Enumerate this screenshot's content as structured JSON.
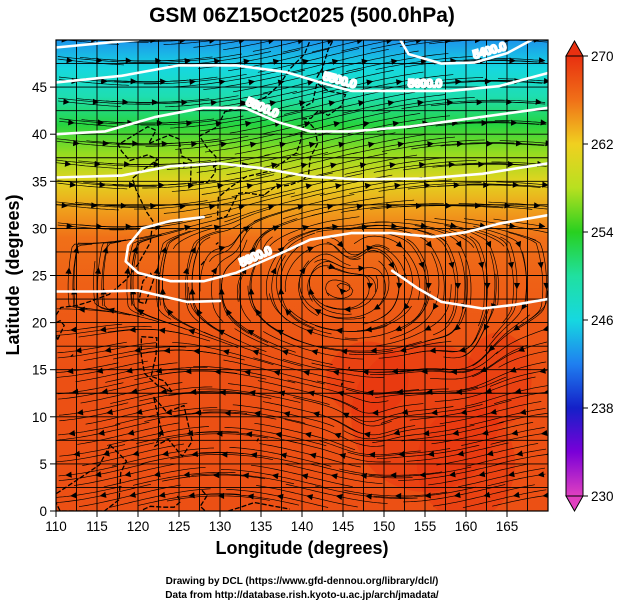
{
  "chart_data": {
    "type": "heatmap",
    "title": "GSM 06Z15Oct2025 (500.0hPa)",
    "xlabel": "Longitude (degrees)",
    "ylabel": "Latitude  (degrees)",
    "xlim": [
      110,
      170
    ],
    "ylim": [
      0,
      50
    ],
    "x_ticks": [
      110,
      115,
      120,
      125,
      130,
      135,
      140,
      145,
      150,
      155,
      160,
      165
    ],
    "y_ticks": [
      0,
      5,
      10,
      15,
      20,
      25,
      30,
      35,
      40,
      45
    ],
    "grid": true,
    "colorbar": {
      "min": 230,
      "max": 270,
      "ticks": [
        230,
        238,
        246,
        254,
        262,
        270
      ],
      "stops": [
        {
          "value": 230,
          "color": "#e040c0"
        },
        {
          "value": 234,
          "color": "#7a00d8"
        },
        {
          "value": 238,
          "color": "#1420c8"
        },
        {
          "value": 242,
          "color": "#1f7ff0"
        },
        {
          "value": 246,
          "color": "#16d8e0"
        },
        {
          "value": 250,
          "color": "#20e0a0"
        },
        {
          "value": 254,
          "color": "#28d020"
        },
        {
          "value": 258,
          "color": "#b8e020"
        },
        {
          "value": 262,
          "color": "#f0d020"
        },
        {
          "value": 266,
          "color": "#f07018"
        },
        {
          "value": 270,
          "color": "#e83010"
        }
      ]
    },
    "temperature_bands": [
      {
        "lat": 50,
        "value": 243
      },
      {
        "lat": 47,
        "value": 246
      },
      {
        "lat": 44,
        "value": 249
      },
      {
        "lat": 41,
        "value": 253
      },
      {
        "lat": 38,
        "value": 257
      },
      {
        "lat": 35,
        "value": 261
      },
      {
        "lat": 32,
        "value": 264
      },
      {
        "lat": 29,
        "value": 266
      },
      {
        "lat": 24,
        "value": 267
      },
      {
        "lat": 15,
        "value": 268
      },
      {
        "lat": 0,
        "value": 268
      }
    ],
    "contours": [
      {
        "label": "5400.0",
        "points": [
          [
            110,
            49.2
          ],
          [
            116,
            49.7
          ],
          [
            120,
            50
          ]
        ]
      },
      {
        "label": "5400.0",
        "points": [
          [
            152,
            50
          ],
          [
            153,
            48.5
          ],
          [
            157,
            47.5
          ],
          [
            161,
            47.6
          ],
          [
            165,
            48.6
          ],
          [
            168,
            50
          ]
        ]
      },
      {
        "label": "5500.0",
        "points": [
          [
            110,
            45.5
          ],
          [
            118,
            46.2
          ],
          [
            125,
            47.3
          ],
          [
            132,
            47.3
          ],
          [
            138,
            46.6
          ],
          [
            143,
            45.3
          ],
          [
            146,
            44.6
          ],
          [
            152,
            44.6
          ],
          [
            158,
            44.6
          ],
          [
            164,
            45.1
          ],
          [
            170,
            46.5
          ]
        ]
      },
      {
        "label": "5600.0",
        "points": [
          [
            110,
            40
          ],
          [
            116,
            40.3
          ],
          [
            122,
            41.8
          ],
          [
            128,
            42.8
          ],
          [
            133,
            42.8
          ],
          [
            137,
            41.3
          ],
          [
            141,
            40.3
          ],
          [
            146,
            40.3
          ],
          [
            153,
            40.8
          ],
          [
            160,
            41.6
          ],
          [
            170,
            42.8
          ]
        ]
      },
      {
        "label": "",
        "points": [
          [
            110,
            35.4
          ],
          [
            118,
            35.6
          ],
          [
            124,
            36.6
          ],
          [
            130,
            36.9
          ],
          [
            135,
            36.4
          ],
          [
            141,
            35.5
          ],
          [
            147,
            35.2
          ],
          [
            155,
            35.3
          ],
          [
            162,
            35.8
          ],
          [
            170,
            36.9
          ]
        ]
      },
      {
        "label": "5800.0",
        "points": [
          [
            128,
            31.2
          ],
          [
            124,
            30.8
          ],
          [
            120.5,
            30
          ],
          [
            118.8,
            28.2
          ],
          [
            118.5,
            26.5
          ],
          [
            120,
            25.3
          ],
          [
            124,
            24.4
          ],
          [
            128,
            24.4
          ],
          [
            132,
            25.3
          ],
          [
            137,
            27.2
          ],
          [
            141,
            28.8
          ],
          [
            146,
            29.5
          ],
          [
            151,
            29.5
          ],
          [
            156,
            29.1
          ],
          [
            160,
            29.6
          ],
          [
            164,
            30.5
          ],
          [
            170,
            31.4
          ]
        ]
      },
      {
        "label": "5800.0",
        "points": [
          [
            110,
            23.3
          ],
          [
            115,
            23.3
          ],
          [
            120,
            23.4
          ],
          [
            126,
            22.2
          ],
          [
            130,
            22.3
          ]
        ]
      },
      {
        "label": "",
        "points": [
          [
            151,
            25.5
          ],
          [
            154,
            23.7
          ],
          [
            157,
            22.2
          ],
          [
            162,
            21.5
          ],
          [
            166,
            21.9
          ],
          [
            170,
            22.5
          ]
        ]
      }
    ],
    "contour_labels": [
      "5400.0",
      "5500.0",
      "5600.0",
      "5800.0",
      "5800.0"
    ],
    "streamline_field": "500hPa wind vectors (westerly jet north of 30N, anticyclone near 25N 145E, easterlies in tropics)"
  },
  "credits": [
    "Drawing by DCL (https://www.gfd-dennou.org/library/dcl/)",
    "Data from http://database.rish.kyoto-u.ac.jp/arch/jmadata/"
  ]
}
